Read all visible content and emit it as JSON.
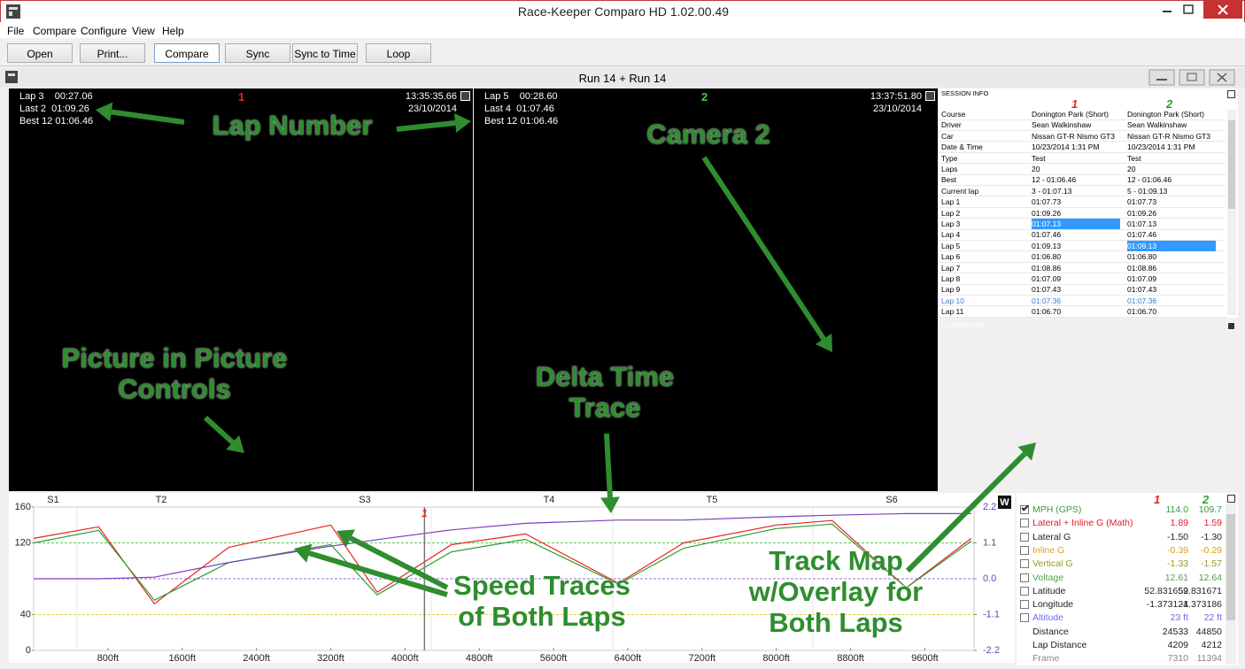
{
  "window": {
    "title": "Race-Keeper Comparo HD 1.02.00.49",
    "menu": [
      "File",
      "Compare",
      "Configure",
      "View",
      "Help"
    ],
    "toolbar": [
      "Open",
      "Print...",
      "Compare",
      "Sync",
      "Sync to Time",
      "Loop"
    ],
    "toolbar_active": 2
  },
  "inner_title": "Run 14 + Run 14",
  "videos": [
    {
      "number": "1",
      "number_color": "#e8231f",
      "lines": [
        "Lap 3    00:27.06",
        "Last 2  01:09.26",
        "Best 12 01:06.46"
      ],
      "clock": "13:35:35.66",
      "date": "23/10/2014"
    },
    {
      "number": "2",
      "number_color": "#3fcf3f",
      "lines": [
        "Lap 5    00:28.60",
        "Last 4  01:07.46",
        "Best 12 01:06.46"
      ],
      "clock": "13:37:51.80",
      "date": "23/10/2014"
    }
  ],
  "session_info": {
    "title": "SESSION INFO",
    "columns": [
      "1",
      "2"
    ],
    "column_colors": [
      "#e8231f",
      "#2e9e2e"
    ],
    "rows": [
      [
        "Course",
        "Donington Park (Short)",
        "Donington Park (Short)"
      ],
      [
        "Driver",
        "Sean Walkinshaw",
        "Sean Walkinshaw"
      ],
      [
        "Car",
        "Nissan GT-R Nismo GT3",
        "Nissan GT-R Nismo GT3"
      ],
      [
        "Date & Time",
        "10/23/2014 1:31 PM",
        "10/23/2014 1:31 PM"
      ],
      [
        "Type",
        "Test",
        "Test"
      ],
      [
        "Laps",
        "20",
        "20"
      ],
      [
        "Best",
        "12 - 01:06.46",
        "12 - 01:06.46"
      ],
      [
        "Current lap",
        "3 - 01:07.13",
        "5 - 01:09.13"
      ],
      [
        "Lap 1",
        "01:07.73",
        "01:07.73"
      ],
      [
        "Lap 2",
        "01:09.26",
        "01:09.26"
      ],
      [
        "Lap 3",
        "01:07.13",
        "01:07.13"
      ],
      [
        "Lap 4",
        "01:07.46",
        "01:07.46"
      ],
      [
        "Lap 5",
        "01:09.13",
        "01:09.13"
      ],
      [
        "Lap 6",
        "01:06.80",
        "01:06.80"
      ],
      [
        "Lap 7",
        "01:08.86",
        "01:08.86"
      ],
      [
        "Lap 8",
        "01:07.09",
        "01:07.09"
      ],
      [
        "Lap 9",
        "01:07.43",
        "01:07.43"
      ],
      [
        "Lap 10",
        "01:07.36",
        "01:07.36"
      ],
      [
        "Lap 11",
        "01:06.70",
        "01:06.70"
      ]
    ],
    "highlighted": [
      [
        10,
        1
      ],
      [
        12,
        2
      ]
    ],
    "blue_rows": [
      17
    ]
  },
  "course_map": {
    "title": "COURSE MAP"
  },
  "chart_data": {
    "type": "line",
    "x": [
      0,
      700,
      1300,
      2100,
      3200,
      3700,
      4500,
      5300,
      6300,
      7000,
      8000,
      8600,
      9400,
      10100
    ],
    "series": [
      {
        "color": "#e8231f",
        "values": [
          125,
          138,
          52,
          115,
          140,
          65,
          118,
          130,
          75,
          120,
          140,
          145,
          70,
          125
        ]
      },
      {
        "color": "#2e9e2e",
        "values": [
          120,
          134,
          56,
          98,
          118,
          62,
          110,
          124,
          74,
          114,
          136,
          141,
          70,
          122
        ]
      },
      {
        "color": "#7a3fbf",
        "axis": "y2",
        "values": [
          0,
          0,
          0.05,
          0.5,
          1.0,
          1.2,
          1.5,
          1.7,
          1.8,
          1.8,
          1.9,
          1.95,
          2.0,
          2.0
        ]
      }
    ],
    "xlim": [
      0,
      10130
    ],
    "xticks": [
      {
        "value": 800,
        "label": "800ft"
      },
      {
        "value": 1600,
        "label": "1600ft"
      },
      {
        "value": 2400,
        "label": "2400ft"
      },
      {
        "value": 3200,
        "label": "3200ft"
      },
      {
        "value": 4000,
        "label": "4000ft"
      },
      {
        "value": 4800,
        "label": "4800ft"
      },
      {
        "value": 5600,
        "label": "5600ft"
      },
      {
        "value": 6400,
        "label": "6400ft"
      },
      {
        "value": 7200,
        "label": "7200ft"
      },
      {
        "value": 8000,
        "label": "8000ft"
      },
      {
        "value": 8800,
        "label": "8800ft"
      },
      {
        "value": 9600,
        "label": "9600ft"
      }
    ],
    "ylim": [
      0,
      160
    ],
    "yticks": [
      0,
      40,
      120,
      160
    ],
    "y2lim": [
      -2.2,
      2.2
    ],
    "y2ticks": [
      -2.2,
      -1.1,
      {
        "value": 0,
        "label": "0.0"
      },
      1.1,
      2.2
    ],
    "guide_lines": [
      {
        "axis": "y",
        "value": 120,
        "color": "#5cc85c"
      },
      {
        "axis": "y",
        "value": 40,
        "color": "#e0d040"
      },
      {
        "axis": "y2",
        "value": 0,
        "color": "#9a6ae0"
      }
    ],
    "sector_labels": [
      "S1",
      "T2",
      "S3",
      "T4",
      "T5",
      "S6"
    ],
    "cursor_x": 4210,
    "cursor_label": "1",
    "w_button": "W"
  },
  "channels": {
    "columns": [
      "1",
      "2"
    ],
    "column_colors": [
      "#e8231f",
      "#2e9e2e"
    ],
    "rows": [
      {
        "name": "MPH (GPS)",
        "color": "#3b9b3b",
        "checkbox": true,
        "checked": true,
        "values": [
          "114.0",
          "109.7"
        ]
      },
      {
        "name": "Lateral + Inline G (Math)",
        "color": "#e02020",
        "checkbox": true,
        "checked": false,
        "values": [
          "1.89",
          "1.59"
        ]
      },
      {
        "name": "Lateral G",
        "color": "#222222",
        "checkbox": true,
        "checked": false,
        "values": [
          "-1.50",
          "-1.30"
        ]
      },
      {
        "name": "Inline G",
        "color": "#d9a21a",
        "checkbox": true,
        "checked": false,
        "values": [
          "-0.39",
          "-0.29"
        ]
      },
      {
        "name": "Vertical G",
        "color": "#9a9a20",
        "checkbox": true,
        "checked": false,
        "values": [
          "-1.33",
          "-1.57"
        ]
      },
      {
        "name": "Voltage",
        "color": "#4fa04f",
        "checkbox": true,
        "checked": false,
        "values": [
          "12.61",
          "12.64"
        ]
      },
      {
        "name": "Latitude",
        "color": "#222222",
        "checkbox": true,
        "checked": false,
        "values": [
          "52.831659",
          "52.831671"
        ]
      },
      {
        "name": "Longitude",
        "color": "#222222",
        "checkbox": true,
        "checked": false,
        "values": [
          "-1.373124",
          "-1.373186"
        ]
      },
      {
        "name": "Altitude",
        "color": "#6a6af0",
        "checkbox": true,
        "checked": false,
        "values": [
          "23 ft",
          "22 ft"
        ]
      },
      {
        "name": "Distance",
        "color": "#222222",
        "checkbox": false,
        "checked": false,
        "values": [
          "24533",
          "44850"
        ]
      },
      {
        "name": "Lap Distance",
        "color": "#222222",
        "checkbox": false,
        "checked": false,
        "values": [
          "4209",
          "4212"
        ]
      },
      {
        "name": "Frame",
        "color": "#888888",
        "checkbox": false,
        "checked": false,
        "values": [
          "7310",
          "11394"
        ]
      }
    ]
  },
  "annotations": [
    {
      "lines": [
        "Lap Number"
      ]
    },
    {
      "lines": [
        "Camera 2"
      ]
    },
    {
      "lines": [
        "Picture in Picture",
        "Controls"
      ]
    },
    {
      "lines": [
        "Delta Time",
        "Trace"
      ]
    },
    {
      "lines": [
        "Speed Traces",
        "of Both Laps"
      ]
    },
    {
      "lines": [
        "Track Map",
        "w/Overlay for",
        "Both Laps"
      ]
    }
  ]
}
